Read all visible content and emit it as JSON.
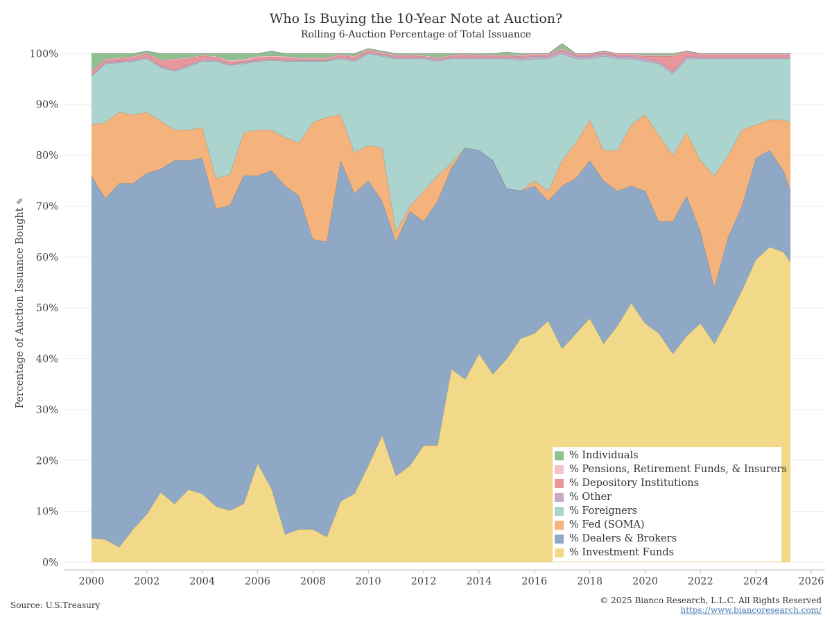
{
  "title": "Who Is Buying the 10-Year Note at Auction?",
  "subtitle": "Rolling 6-Auction Percentage of Total Issuance",
  "ylabel": "Percentage of Auction Issuance Bought",
  "ylabel_icon": "pin-icon",
  "source": "Source: U.S.Treasury",
  "copyright": "© 2025 Bianco Research, L.L.C. All Rights Reserved",
  "url": "https://www.biancoresearch.com/",
  "chart_data": {
    "type": "area",
    "stacked": true,
    "title": "Who Is Buying the 10-Year Note at Auction?",
    "subtitle": "Rolling 6-Auction Percentage of Total Issuance",
    "xlabel": "",
    "ylabel": "Percentage of Auction Issuance Bought",
    "xlim": [
      1999,
      2026.5
    ],
    "ylim": [
      -1.5,
      101
    ],
    "x_ticks": [
      2000,
      2002,
      2004,
      2006,
      2008,
      2010,
      2012,
      2014,
      2016,
      2018,
      2020,
      2022,
      2024,
      2026
    ],
    "x_tick_labels": [
      "2000",
      "2002",
      "2004",
      "2006",
      "2008",
      "2010",
      "2012",
      "2014",
      "2016",
      "2018",
      "2020",
      "2022",
      "2024",
      "2026"
    ],
    "y_ticks": [
      0,
      10,
      20,
      30,
      40,
      50,
      60,
      70,
      80,
      90,
      100
    ],
    "y_tick_labels": [
      "0%",
      "10%",
      "20%",
      "30%",
      "40%",
      "50%",
      "60%",
      "70%",
      "80%",
      "90%",
      "100%"
    ],
    "grid": "horizontal",
    "legend_position": "bottom-right",
    "x": [
      2000.0,
      2000.5,
      2001.0,
      2001.5,
      2002.0,
      2002.5,
      2003.0,
      2003.5,
      2004.0,
      2004.5,
      2005.0,
      2005.5,
      2006.0,
      2006.5,
      2007.0,
      2007.5,
      2008.0,
      2008.5,
      2009.0,
      2009.5,
      2010.0,
      2010.5,
      2011.0,
      2011.5,
      2012.0,
      2012.5,
      2013.0,
      2013.5,
      2014.0,
      2014.5,
      2015.0,
      2015.5,
      2016.0,
      2016.5,
      2017.0,
      2017.5,
      2018.0,
      2018.5,
      2019.0,
      2019.5,
      2020.0,
      2020.5,
      2021.0,
      2021.5,
      2022.0,
      2022.5,
      2023.0,
      2023.5,
      2024.0,
      2024.5,
      2025.0,
      2025.25
    ],
    "series": [
      {
        "name": "% Investment Funds",
        "color": "#f2d98a",
        "values": [
          4.8,
          4.5,
          3.0,
          6.5,
          9.5,
          13.8,
          11.5,
          14.3,
          13.5,
          11.0,
          10.2,
          11.5,
          19.5,
          14.5,
          5.5,
          6.5,
          6.5,
          5.0,
          12.0,
          13.5,
          19.0,
          25.0,
          17.0,
          19.0,
          23.0,
          23.0,
          38.0,
          36.0,
          41.0,
          37.0,
          40.0,
          44.0,
          45.0,
          47.5,
          42.0,
          45.0,
          48.0,
          43.0,
          46.5,
          51.0,
          47.0,
          45.0,
          41.0,
          44.5,
          47.0,
          43.0,
          48.0,
          53.5,
          59.5,
          62.0,
          61.0,
          59.0
        ]
      },
      {
        "name": "% Dealers & Brokers",
        "color": "#8ea8c6",
        "values": [
          71.2,
          67.0,
          71.5,
          68.0,
          67.0,
          63.5,
          67.5,
          64.7,
          66.0,
          58.5,
          60.0,
          64.5,
          56.5,
          62.5,
          68.5,
          65.5,
          57.0,
          58.0,
          67.0,
          59.0,
          56.0,
          46.0,
          46.0,
          50.0,
          44.0,
          48.0,
          39.5,
          45.5,
          40.0,
          42.0,
          33.5,
          29.0,
          29.0,
          23.5,
          32.0,
          30.5,
          31.0,
          32.0,
          26.5,
          23.0,
          26.0,
          22.0,
          26.0,
          27.5,
          18.0,
          11.0,
          16.0,
          16.5,
          20.0,
          19.0,
          16.0,
          14.0
        ]
      },
      {
        "name": "% Fed (SOMA)",
        "color": "#f4b27c",
        "values": [
          10.0,
          15.0,
          14.0,
          13.5,
          12.0,
          9.5,
          6.0,
          6.0,
          6.0,
          6.0,
          6.0,
          8.5,
          9.0,
          8.0,
          9.5,
          10.5,
          23.0,
          24.5,
          9.0,
          8.0,
          7.0,
          10.5,
          2.0,
          1.0,
          6.0,
          5.0,
          1.0,
          0.0,
          0.0,
          0.0,
          0.0,
          0.0,
          1.0,
          2.0,
          5.0,
          7.0,
          8.0,
          6.0,
          8.0,
          12.0,
          15.0,
          17.0,
          13.0,
          12.5,
          14.0,
          22.0,
          16.0,
          15.0,
          6.5,
          6.0,
          10.0,
          13.5
        ]
      },
      {
        "name": "% Foreigners",
        "color": "#acd4cf",
        "values": [
          9.5,
          11.5,
          9.7,
          10.5,
          10.5,
          10.5,
          11.5,
          12.5,
          13.0,
          23.0,
          21.5,
          13.5,
          13.5,
          13.7,
          15.0,
          16.0,
          12.0,
          11.0,
          11.0,
          18.0,
          18.0,
          18.0,
          34.0,
          29.0,
          26.0,
          22.5,
          20.5,
          17.5,
          18.0,
          20.0,
          25.5,
          25.7,
          24.0,
          26.0,
          21.0,
          16.5,
          12.0,
          18.5,
          18.0,
          13.0,
          10.5,
          14.0,
          16.0,
          14.5,
          20.0,
          23.0,
          19.0,
          14.0,
          13.0,
          12.0,
          12.0,
          12.5
        ]
      },
      {
        "name": "% Other",
        "color": "#c9a8c8",
        "values": [
          0.3,
          0.3,
          0.3,
          0.3,
          0.3,
          0.3,
          0.3,
          0.3,
          0.3,
          0.3,
          0.2,
          0.3,
          0.2,
          0.2,
          0.2,
          0.2,
          0.2,
          0.2,
          0.3,
          0.3,
          0.3,
          0.3,
          0.3,
          0.3,
          0.3,
          0.3,
          0.3,
          0.3,
          0.3,
          0.3,
          0.3,
          0.5,
          0.5,
          0.5,
          0.5,
          0.5,
          0.5,
          0.5,
          0.5,
          0.5,
          0.5,
          0.5,
          0.5,
          0.5,
          0.3,
          0.3,
          0.3,
          0.3,
          0.3,
          0.3,
          0.3,
          0.3
        ]
      },
      {
        "name": "% Depository Institutions",
        "color": "#e8969a",
        "values": [
          0.7,
          0.5,
          0.5,
          0.5,
          0.7,
          1.0,
          2.0,
          1.2,
          0.8,
          0.5,
          0.5,
          0.3,
          0.5,
          0.5,
          0.5,
          0.3,
          0.3,
          0.3,
          0.4,
          0.5,
          0.4,
          0.3,
          0.3,
          0.3,
          0.2,
          0.2,
          0.3,
          0.4,
          0.3,
          0.3,
          0.3,
          0.3,
          0.3,
          0.3,
          0.3,
          0.3,
          0.3,
          0.3,
          0.3,
          0.3,
          0.5,
          1.0,
          3.0,
          0.8,
          0.5,
          0.5,
          0.5,
          0.5,
          0.5,
          0.5,
          0.5,
          0.5
        ]
      },
      {
        "name": "% Pensions, Retirement Funds, & Insurers",
        "color": "#f7c1c9",
        "values": [
          0.2,
          0.2,
          0.2,
          0.2,
          0.2,
          0.2,
          0.2,
          0.2,
          0.2,
          0.2,
          0.3,
          0.3,
          0.3,
          0.2,
          0.3,
          0.2,
          0.2,
          0.2,
          0.2,
          0.2,
          0.2,
          0.2,
          0.2,
          0.2,
          0.2,
          0.2,
          0.2,
          0.2,
          0.2,
          0.2,
          0.2,
          0.2,
          0.2,
          0.2,
          0.2,
          0.2,
          0.2,
          0.2,
          0.2,
          0.2,
          0.2,
          0.2,
          0.2,
          0.2,
          0.2,
          0.2,
          0.2,
          0.2,
          0.2,
          0.2,
          0.2,
          0.2
        ]
      },
      {
        "name": "% Individuals",
        "color": "#8fc08f",
        "values": [
          3.3,
          1.0,
          0.8,
          0.5,
          0.3,
          1.2,
          1.0,
          0.8,
          0.2,
          0.5,
          1.3,
          1.1,
          0.5,
          0.9,
          0.5,
          0.8,
          0.8,
          0.8,
          0.1,
          0.5,
          0.1,
          0.2,
          0.2,
          0.2,
          0.3,
          0.8,
          0.2,
          0.1,
          0.2,
          0.2,
          0.5,
          0.3,
          0.0,
          0.0,
          1.0,
          0.0,
          0.0,
          0.0,
          0.0,
          0.0,
          0.3,
          0.3,
          0.3,
          0.0,
          0.0,
          0.0,
          0.0,
          0.0,
          0.0,
          0.0,
          0.0,
          0.0
        ]
      }
    ]
  },
  "legend": {
    "items": [
      {
        "label": "% Individuals",
        "color": "#8fc08f"
      },
      {
        "label": "% Pensions, Retirement Funds, & Insurers",
        "color": "#f7c1c9"
      },
      {
        "label": "% Depository Institutions",
        "color": "#e8969a"
      },
      {
        "label": "% Other",
        "color": "#c9a8c8"
      },
      {
        "label": "% Foreigners",
        "color": "#acd4cf"
      },
      {
        "label": "% Fed (SOMA)",
        "color": "#f4b27c"
      },
      {
        "label": "% Dealers & Brokers",
        "color": "#8ea8c6"
      },
      {
        "label": "% Investment Funds",
        "color": "#f2d98a"
      }
    ]
  }
}
